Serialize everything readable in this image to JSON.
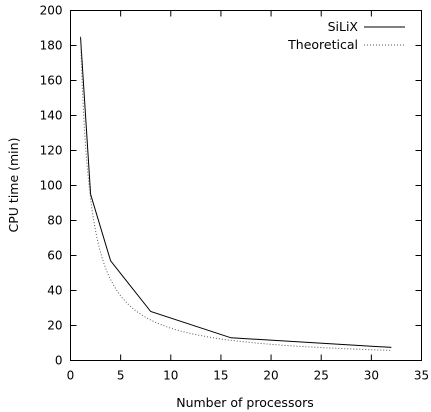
{
  "chart_data": {
    "type": "line",
    "xlabel": "Number of processors",
    "ylabel": "CPU time (min)",
    "xlim": [
      0,
      35
    ],
    "ylim": [
      0,
      200
    ],
    "xticks": [
      0,
      5,
      10,
      15,
      20,
      25,
      30,
      35
    ],
    "yticks": [
      0,
      20,
      40,
      60,
      80,
      100,
      120,
      140,
      160,
      180,
      200
    ],
    "grid": false,
    "legend_position": "top-right",
    "series": [
      {
        "name": "SiLiX",
        "style": "solid",
        "color": "#000000",
        "x": [
          1,
          2,
          4,
          8,
          16,
          32
        ],
        "y": [
          185,
          95,
          57,
          28,
          13,
          7.5
        ]
      },
      {
        "name": "Theoretical",
        "style": "dotted",
        "color": "#555555",
        "function": "185/x",
        "x": [
          1,
          2,
          4,
          8,
          16,
          32
        ],
        "y": [
          185,
          92.5,
          46.25,
          23.1,
          11.6,
          5.8
        ]
      }
    ]
  }
}
